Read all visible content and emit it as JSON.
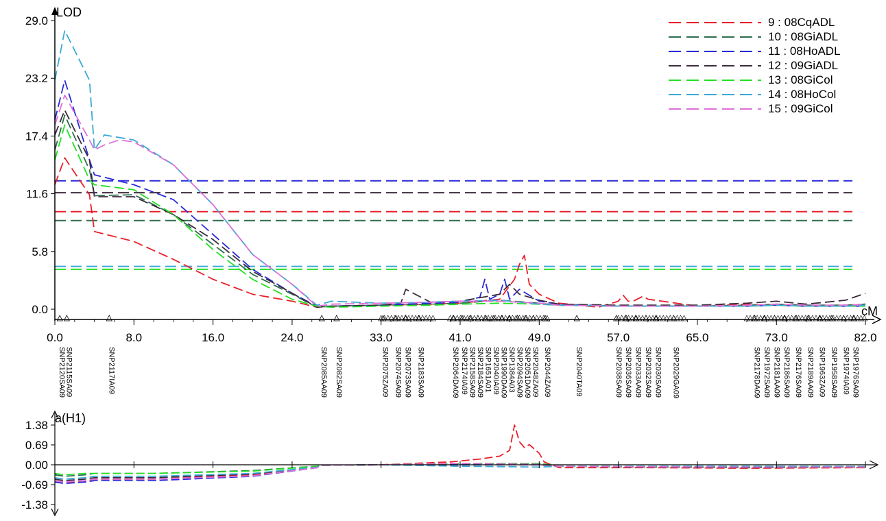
{
  "chart_data": [
    {
      "type": "line",
      "ylabel": "LOD",
      "xlabel": "cM",
      "yticks": [
        "0.0",
        "5.8",
        "11.6",
        "17.4",
        "23.2",
        "29.0"
      ],
      "xticks": [
        "0.0",
        "8.0",
        "16.0",
        "24.0",
        "33.0",
        "41.0",
        "49.0",
        "57.0",
        "65.0",
        "73.0",
        "82.0"
      ],
      "xlim": [
        0,
        82
      ],
      "ylim": [
        0,
        29
      ],
      "legend_position": "top-right",
      "grid": false,
      "series": [
        {
          "name": "9 : 08CqADL",
          "color": "#e8202a",
          "x": [
            0,
            1,
            3.5,
            4,
            8,
            12,
            16,
            20,
            24,
            26.5,
            28,
            33,
            38,
            41,
            43,
            45,
            46.5,
            47,
            47.5,
            48,
            49,
            51,
            55,
            57,
            57.5,
            58,
            58.5,
            59.5,
            60,
            65,
            70,
            73,
            76,
            80,
            82
          ],
          "y": [
            12.5,
            15.2,
            11.5,
            7.8,
            6.8,
            5.0,
            3.0,
            1.5,
            0.8,
            0.2,
            0.3,
            0.4,
            0.5,
            0.6,
            0.8,
            1.0,
            3.0,
            4.5,
            5.4,
            2.5,
            1.5,
            0.6,
            0.2,
            0.8,
            1.4,
            0.8,
            0.8,
            1.3,
            1.0,
            0.3,
            0.5,
            0.4,
            0.3,
            0.4,
            0.5
          ]
        },
        {
          "name": "10 : 08GiADL",
          "color": "#2e6e4e",
          "x": [
            0,
            1,
            3.5,
            4,
            8,
            12,
            16,
            20,
            24,
            26.5,
            28,
            33,
            38,
            41,
            45,
            49,
            51,
            57,
            65,
            70,
            73,
            76,
            80,
            82
          ],
          "y": [
            16.0,
            19.5,
            14.0,
            11.4,
            11.5,
            9.5,
            6.5,
            3.5,
            1.5,
            0.2,
            0.3,
            0.4,
            0.5,
            0.6,
            0.9,
            0.6,
            0.4,
            0.3,
            0.3,
            0.4,
            0.5,
            0.4,
            0.4,
            0.5
          ]
        },
        {
          "name": "11 : 08HoADL",
          "color": "#2a2ad8",
          "x": [
            0,
            1,
            3.5,
            4,
            8,
            12,
            16,
            20,
            24,
            26.5,
            28,
            33,
            38,
            41,
            43,
            43.5,
            44,
            45,
            45.5,
            46,
            47,
            49,
            51,
            57,
            65,
            70,
            73,
            76,
            80,
            82
          ],
          "y": [
            19.0,
            23.0,
            15.0,
            13.5,
            12.5,
            11.0,
            7.5,
            4.0,
            1.6,
            0.3,
            0.3,
            0.4,
            0.6,
            0.7,
            1.2,
            3.0,
            1.0,
            1.5,
            3.0,
            1.0,
            2.0,
            0.8,
            0.5,
            0.3,
            0.3,
            0.3,
            0.4,
            0.3,
            0.3,
            0.3
          ]
        },
        {
          "name": "12 : 09GiADL",
          "color": "#3c2a3c",
          "x": [
            0,
            1,
            3.5,
            4,
            8,
            12,
            16,
            20,
            24,
            26.5,
            28,
            33,
            35,
            35.5,
            38,
            41,
            45,
            46,
            47,
            49,
            51,
            57,
            65,
            70,
            73,
            76,
            80,
            82
          ],
          "y": [
            17.5,
            20.0,
            15.0,
            11.3,
            11.3,
            9.5,
            7.0,
            3.8,
            1.6,
            0.2,
            0.3,
            0.4,
            0.6,
            2.0,
            0.7,
            0.8,
            1.5,
            2.5,
            1.5,
            0.9,
            0.5,
            0.4,
            0.4,
            0.6,
            0.8,
            0.5,
            0.9,
            1.6
          ]
        },
        {
          "name": "13 : 08GiCol",
          "color": "#22e022",
          "x": [
            0,
            1,
            3.5,
            4,
            8,
            12,
            16,
            20,
            24,
            26.5,
            28,
            33,
            38,
            41,
            45,
            49,
            51,
            57,
            65,
            70,
            73,
            76,
            80,
            82
          ],
          "y": [
            15.0,
            18.5,
            13.0,
            12.5,
            12.0,
            9.5,
            6.0,
            3.0,
            1.0,
            0.3,
            0.2,
            0.3,
            0.4,
            0.5,
            0.6,
            0.5,
            0.4,
            0.3,
            0.3,
            0.3,
            0.4,
            0.3,
            0.3,
            0.3
          ]
        },
        {
          "name": "14 : 08HoCol",
          "color": "#3aaad6",
          "x": [
            0,
            1,
            3.5,
            4,
            5,
            8,
            12,
            16,
            20,
            24,
            26.5,
            28,
            33,
            38,
            41,
            45,
            49,
            51,
            57,
            65,
            70,
            73,
            76,
            80,
            82
          ],
          "y": [
            23.0,
            28.0,
            23.0,
            16.0,
            17.5,
            17.0,
            14.5,
            10.5,
            5.5,
            2.5,
            0.4,
            0.8,
            0.6,
            0.7,
            0.8,
            0.9,
            0.5,
            0.4,
            0.3,
            0.3,
            0.3,
            0.4,
            0.3,
            0.3,
            0.4
          ]
        },
        {
          "name": "15 : 09GiCol",
          "color": "#e070d8",
          "x": [
            0,
            1,
            3.5,
            4,
            5,
            6.5,
            8,
            12,
            16,
            20,
            24,
            26.5,
            28,
            33,
            38,
            41,
            45,
            49,
            51,
            57,
            65,
            70,
            73,
            76,
            80,
            82
          ],
          "y": [
            18.5,
            21.5,
            17.0,
            16.0,
            16.5,
            17.0,
            16.8,
            14.5,
            10.5,
            5.5,
            2.5,
            0.3,
            0.5,
            0.6,
            0.7,
            0.8,
            0.8,
            0.6,
            0.4,
            0.3,
            0.3,
            0.4,
            0.5,
            0.4,
            0.4,
            0.5
          ]
        }
      ],
      "thresholds": [
        {
          "series": "11 : 08HoADL",
          "y": 12.9
        },
        {
          "series": "12 : 09GiADL",
          "y": 11.7
        },
        {
          "series": "9 : 08CqADL",
          "y": 9.8
        },
        {
          "series": "10 : 08GiADL",
          "y": 8.9
        },
        {
          "series": "14 : 08HoCol",
          "y": 4.3
        },
        {
          "series": "13 : 08GiCol",
          "y": 4.0
        }
      ],
      "markers": [
        {
          "cM": 0.5,
          "name": "SNP2120SA09"
        },
        {
          "cM": 1.2,
          "name": "SNP2115SA09"
        },
        {
          "cM": 5.5,
          "name": "SNP2117IA09"
        },
        {
          "cM": 27.0,
          "name": "SNP2085AA09"
        },
        {
          "cM": 28.5,
          "name": "SNP2082SA09"
        },
        {
          "cM": 33.2,
          "name": "SNP2075ZA09"
        },
        {
          "cM": 34.5,
          "name": "SNP2074SA09"
        },
        {
          "cM": 35.5,
          "name": "SNP2073SA09"
        },
        {
          "cM": 36.8,
          "name": "SNP2183SA09"
        },
        {
          "cM": 40.3,
          "name": "SNP2064DA09"
        },
        {
          "cM": 41.2,
          "name": "SNP2174IA09"
        },
        {
          "cM": 42.0,
          "name": "SNP2158SA09"
        },
        {
          "cM": 42.8,
          "name": "SNP2184SA09"
        },
        {
          "cM": 43.6,
          "name": "SNP1651A01"
        },
        {
          "cM": 44.4,
          "name": "SNP2040IA09"
        },
        {
          "cM": 45.2,
          "name": "SNP1990DA09"
        },
        {
          "cM": 46.0,
          "name": "SNP1384A03"
        },
        {
          "cM": 46.8,
          "name": "SNP2094SA09"
        },
        {
          "cM": 47.6,
          "name": "SNP2051DA09"
        },
        {
          "cM": 48.4,
          "name": "SNP2048ZA09"
        },
        {
          "cM": 49.6,
          "name": "SNP2044ZA09"
        },
        {
          "cM": 52.8,
          "name": "SNP2040TA09"
        },
        {
          "cM": 56.8,
          "name": "SNP2038SA09"
        },
        {
          "cM": 57.8,
          "name": "SNP2036SA09"
        },
        {
          "cM": 58.8,
          "name": "SNP2033AA09"
        },
        {
          "cM": 59.8,
          "name": "SNP2032SA09"
        },
        {
          "cM": 60.8,
          "name": "SNP2030SA09"
        },
        {
          "cM": 62.6,
          "name": "SNP2029GA09"
        },
        {
          "cM": 70.8,
          "name": "SNP2178DA09"
        },
        {
          "cM": 71.8,
          "name": "SNP1972SA09"
        },
        {
          "cM": 72.8,
          "name": "SNP2181AA09"
        },
        {
          "cM": 73.8,
          "name": "SNP2186SA09"
        },
        {
          "cM": 75.0,
          "name": "SNP2176SA09"
        },
        {
          "cM": 76.2,
          "name": "SNP2189AA09"
        },
        {
          "cM": 77.4,
          "name": "SNP1963ZA09"
        },
        {
          "cM": 78.6,
          "name": "SNP1958SA09"
        },
        {
          "cM": 79.8,
          "name": "SNP1974IA09"
        },
        {
          "cM": 80.8,
          "name": "SNP1976SA09"
        }
      ]
    },
    {
      "type": "line",
      "ylabel": "a(H1)",
      "yticks": [
        "1.38",
        "0.69",
        "0.00",
        "-0.69",
        "-1.38"
      ],
      "ylim": [
        -1.38,
        1.38
      ],
      "xlim": [
        0,
        82
      ],
      "series": [
        {
          "name": "9 : 08CqADL",
          "color": "#e8202a",
          "x": [
            0,
            1,
            3,
            4,
            10,
            20,
            26.5,
            27,
            33,
            40,
            43,
            45,
            46,
            46.5,
            47,
            47.5,
            48,
            49,
            49.5,
            51,
            60,
            70,
            82
          ],
          "y": [
            -0.55,
            -0.6,
            -0.6,
            -0.5,
            -0.5,
            -0.35,
            -0.1,
            -0.02,
            0.0,
            0.1,
            0.2,
            0.3,
            0.5,
            1.38,
            0.8,
            0.6,
            0.7,
            0.4,
            0.1,
            -0.1,
            -0.1,
            -0.12,
            -0.1
          ]
        },
        {
          "name": "10 : 08GiADL",
          "color": "#2e6e4e",
          "x": [
            0,
            1,
            3,
            4,
            10,
            20,
            26.5,
            27,
            33,
            41,
            49,
            51,
            60,
            70,
            82
          ],
          "y": [
            -0.35,
            -0.4,
            -0.35,
            -0.3,
            -0.3,
            -0.2,
            -0.05,
            -0.02,
            0.0,
            0.05,
            0.05,
            -0.05,
            -0.08,
            -0.1,
            -0.08
          ]
        },
        {
          "name": "11 : 08HoADL",
          "color": "#2a2ad8",
          "x": [
            0,
            1,
            3,
            4,
            10,
            20,
            26.5,
            27,
            33,
            41,
            49,
            51,
            60,
            70,
            82
          ],
          "y": [
            -0.6,
            -0.65,
            -0.6,
            -0.55,
            -0.55,
            -0.4,
            -0.1,
            -0.02,
            0.0,
            0.0,
            0.0,
            -0.05,
            -0.06,
            -0.08,
            -0.06
          ]
        },
        {
          "name": "12 : 09GiADL",
          "color": "#3c2a3c",
          "x": [
            0,
            1,
            3,
            4,
            10,
            20,
            26.5,
            27,
            33,
            41,
            49,
            51,
            60,
            70,
            82
          ],
          "y": [
            -0.5,
            -0.55,
            -0.5,
            -0.45,
            -0.45,
            -0.32,
            -0.08,
            -0.02,
            0.0,
            0.05,
            0.05,
            -0.05,
            -0.08,
            -0.1,
            -0.08
          ]
        },
        {
          "name": "13 : 08GiCol",
          "color": "#22e022",
          "x": [
            0,
            1,
            3,
            4,
            10,
            20,
            26.5,
            27,
            33,
            41,
            49,
            51,
            60,
            70,
            82
          ],
          "y": [
            -0.3,
            -0.35,
            -0.3,
            -0.3,
            -0.3,
            -0.22,
            -0.05,
            -0.02,
            0.0,
            0.05,
            0.05,
            -0.05,
            -0.06,
            -0.06,
            -0.06
          ]
        },
        {
          "name": "14 : 08HoCol",
          "color": "#3aaad6",
          "x": [
            0,
            1,
            3,
            4,
            10,
            20,
            26.5,
            27,
            33,
            41,
            49,
            51,
            60,
            70,
            82
          ],
          "y": [
            -0.45,
            -0.5,
            -0.45,
            -0.4,
            -0.4,
            -0.3,
            -0.08,
            -0.02,
            0.0,
            -0.05,
            -0.08,
            -0.05,
            -0.05,
            -0.05,
            -0.06
          ]
        },
        {
          "name": "15 : 09GiCol",
          "color": "#e070d8",
          "x": [
            0,
            1,
            3,
            4,
            10,
            20,
            26.5,
            27,
            33,
            41,
            49,
            51,
            60,
            70,
            82
          ],
          "y": [
            -0.55,
            -0.6,
            -0.55,
            -0.5,
            -0.5,
            -0.38,
            -0.1,
            -0.02,
            0.0,
            0.05,
            0.02,
            -0.05,
            -0.07,
            -0.08,
            -0.08
          ]
        }
      ]
    }
  ]
}
